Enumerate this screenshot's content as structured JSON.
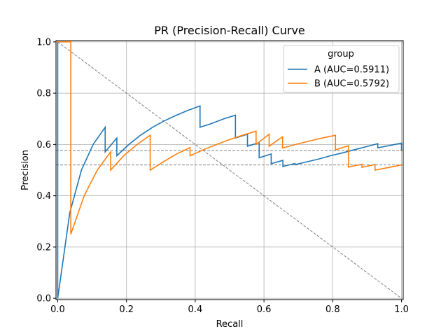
{
  "chart_data": {
    "type": "line",
    "title": "PR (Precision-Recall) Curve",
    "xlabel": "Recall",
    "ylabel": "Precision",
    "xlim": [
      -0.005,
      1.005
    ],
    "ylim": [
      -0.005,
      1.005
    ],
    "xticks": [
      0.0,
      0.2,
      0.4,
      0.6,
      0.8,
      1.0
    ],
    "xtick_labels": [
      "0.0",
      "0.2",
      "0.4",
      "0.6",
      "0.8",
      "1.0"
    ],
    "yticks": [
      0.0,
      0.2,
      0.4,
      0.6,
      0.8,
      1.0
    ],
    "ytick_labels": [
      "0.0",
      "0.2",
      "0.4",
      "0.6",
      "0.8",
      "1.0"
    ],
    "grid": true,
    "legend": {
      "title": "group",
      "placement": "top-right"
    },
    "series": [
      {
        "name": "A (AUC=0.5911)",
        "color": "#1f77b4",
        "x": [
          0,
          0,
          0.035,
          0.069,
          0.103,
          0.138,
          0.138,
          0.172,
          0.172,
          0.207,
          0.241,
          0.276,
          0.31,
          0.345,
          0.379,
          0.414,
          0.414,
          0.448,
          0.483,
          0.517,
          0.517,
          0.552,
          0.552,
          0.586,
          0.586,
          0.621,
          0.621,
          0.655,
          0.655,
          0.69,
          0.69,
          0.724,
          0.759,
          0.793,
          0.828,
          0.862,
          0.897,
          0.931,
          0.931,
          0.966,
          1.0,
          1.0
        ],
        "y": [
          1.0,
          0.0,
          0.333,
          0.5,
          0.6,
          0.667,
          0.571,
          0.625,
          0.556,
          0.6,
          0.636,
          0.667,
          0.692,
          0.714,
          0.733,
          0.75,
          0.667,
          0.682,
          0.7,
          0.714,
          0.625,
          0.64,
          0.593,
          0.607,
          0.548,
          0.563,
          0.525,
          0.538,
          0.514,
          0.526,
          0.521,
          0.532,
          0.543,
          0.556,
          0.567,
          0.579,
          0.591,
          0.603,
          0.587,
          0.596,
          0.605,
          0.576
        ]
      },
      {
        "name": "B (AUC=0.5792)",
        "color": "#ff7f0e",
        "x": [
          0,
          0.038,
          0.038,
          0.077,
          0.115,
          0.154,
          0.154,
          0.192,
          0.231,
          0.269,
          0.269,
          0.308,
          0.346,
          0.385,
          0.385,
          0.423,
          0.462,
          0.5,
          0.538,
          0.577,
          0.577,
          0.615,
          0.615,
          0.654,
          0.654,
          0.692,
          0.731,
          0.769,
          0.808,
          0.808,
          0.846,
          0.846,
          0.885,
          0.885,
          0.923,
          0.923,
          0.962,
          1.0
        ],
        "y": [
          1.0,
          1.0,
          0.25,
          0.4,
          0.5,
          0.571,
          0.5,
          0.556,
          0.6,
          0.636,
          0.5,
          0.533,
          0.563,
          0.588,
          0.556,
          0.579,
          0.6,
          0.619,
          0.636,
          0.652,
          0.6,
          0.64,
          0.593,
          0.63,
          0.586,
          0.6,
          0.613,
          0.625,
          0.636,
          0.579,
          0.595,
          0.512,
          0.523,
          0.511,
          0.522,
          0.5,
          0.51,
          0.52
        ]
      }
    ],
    "reference_lines": [
      {
        "kind": "diagonal",
        "points": [
          [
            0,
            1
          ],
          [
            1,
            0
          ]
        ],
        "color": "#808080",
        "dash": "dashed"
      },
      {
        "kind": "horizontal",
        "y": 0.576,
        "color": "#808080",
        "dash": "dashed"
      },
      {
        "kind": "horizontal",
        "y": 0.52,
        "color": "#808080",
        "dash": "dashed"
      }
    ]
  }
}
